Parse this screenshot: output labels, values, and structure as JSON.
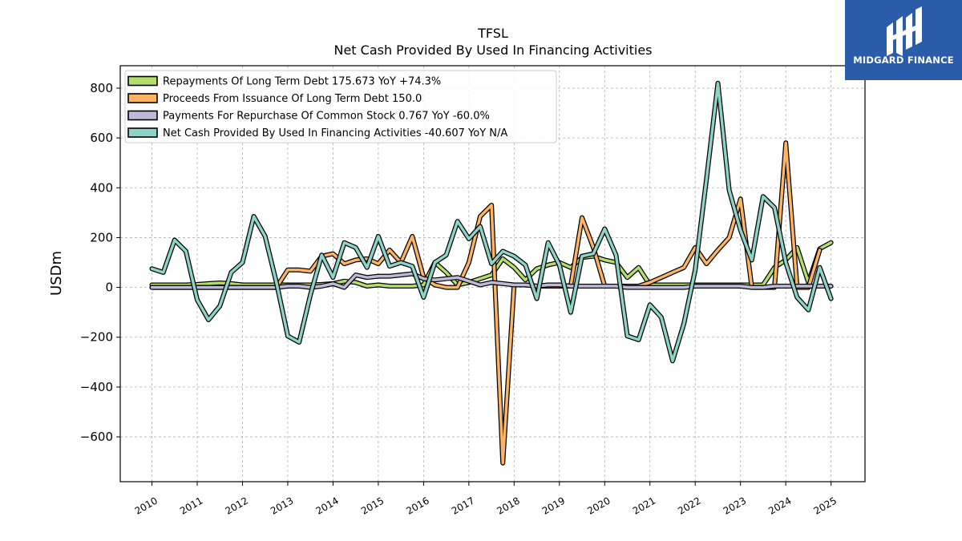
{
  "chart_data": {
    "type": "line",
    "title": "TFSL",
    "subtitle": "Net Cash Provided By Used In Financing Activities",
    "ylabel": "USDm",
    "xlabel": "",
    "ylim": [
      -780,
      890
    ],
    "xlim": [
      2009.3,
      2025.75
    ],
    "grid": true,
    "legend_position": "top-left",
    "yticks": [
      -600,
      -400,
      -200,
      0,
      200,
      400,
      600,
      800
    ],
    "ytick_labels": [
      "−600",
      "−400",
      "−200",
      "0",
      "200",
      "400",
      "600",
      "800"
    ],
    "xticks": [
      "2010",
      "2011",
      "2012",
      "2013",
      "2014",
      "2015",
      "2016",
      "2017",
      "2018",
      "2019",
      "2020",
      "2021",
      "2022",
      "2023",
      "2024",
      "2025"
    ],
    "series": [
      {
        "name": "Repayments Of Long Term Debt",
        "legend_label": "Repayments Of Long Term Debt  175.673 YoY +74.3%",
        "color": "#b3de69",
        "points": [
          [
            2010,
            10
          ],
          [
            2010.25,
            10
          ],
          [
            2010.5,
            10
          ],
          [
            2010.75,
            10
          ],
          [
            2011,
            12
          ],
          [
            2011.25,
            15
          ],
          [
            2011.5,
            18
          ],
          [
            2011.75,
            15
          ],
          [
            2012,
            10
          ],
          [
            2012.25,
            10
          ],
          [
            2012.5,
            10
          ],
          [
            2012.75,
            10
          ],
          [
            2013,
            10
          ],
          [
            2013.25,
            10
          ],
          [
            2013.5,
            10
          ],
          [
            2013.75,
            12
          ],
          [
            2014,
            15
          ],
          [
            2014.25,
            25
          ],
          [
            2014.5,
            20
          ],
          [
            2014.75,
            5
          ],
          [
            2015,
            10
          ],
          [
            2015.25,
            5
          ],
          [
            2015.5,
            5
          ],
          [
            2015.75,
            5
          ],
          [
            2016,
            10
          ],
          [
            2016.25,
            100
          ],
          [
            2016.5,
            60
          ],
          [
            2016.75,
            10
          ],
          [
            2017,
            20
          ],
          [
            2017.25,
            35
          ],
          [
            2017.5,
            50
          ],
          [
            2017.75,
            115
          ],
          [
            2018,
            80
          ],
          [
            2018.25,
            30
          ],
          [
            2018.5,
            75
          ],
          [
            2018.75,
            90
          ],
          [
            2019,
            100
          ],
          [
            2019.25,
            80
          ],
          [
            2019.5,
            120
          ],
          [
            2019.75,
            125
          ],
          [
            2020,
            110
          ],
          [
            2020.25,
            100
          ],
          [
            2020.5,
            40
          ],
          [
            2020.75,
            80
          ],
          [
            2021,
            10
          ],
          [
            2021.25,
            10
          ],
          [
            2021.5,
            10
          ],
          [
            2021.75,
            10
          ],
          [
            2022,
            10
          ],
          [
            2022.25,
            10
          ],
          [
            2022.5,
            10
          ],
          [
            2022.75,
            10
          ],
          [
            2023,
            10
          ],
          [
            2023.25,
            10
          ],
          [
            2023.5,
            10
          ],
          [
            2023.75,
            80
          ],
          [
            2024,
            110
          ],
          [
            2024.25,
            160
          ],
          [
            2024.5,
            20
          ],
          [
            2024.75,
            155
          ],
          [
            2025,
            180
          ]
        ]
      },
      {
        "name": "Proceeds From Issuance Of Long Term Debt",
        "legend_label": "Proceeds From Issuance Of Long Term Debt  150.0",
        "color": "#fdb462",
        "points": [
          [
            2010,
            0
          ],
          [
            2010.25,
            0
          ],
          [
            2010.5,
            0
          ],
          [
            2010.75,
            0
          ],
          [
            2011,
            0
          ],
          [
            2011.25,
            0
          ],
          [
            2011.5,
            0
          ],
          [
            2011.75,
            0
          ],
          [
            2012,
            0
          ],
          [
            2012.25,
            0
          ],
          [
            2012.5,
            0
          ],
          [
            2012.75,
            0
          ],
          [
            2013,
            70
          ],
          [
            2013.25,
            70
          ],
          [
            2013.5,
            65
          ],
          [
            2013.75,
            125
          ],
          [
            2014,
            135
          ],
          [
            2014.25,
            95
          ],
          [
            2014.5,
            110
          ],
          [
            2014.75,
            115
          ],
          [
            2015,
            95
          ],
          [
            2015.25,
            150
          ],
          [
            2015.5,
            100
          ],
          [
            2015.75,
            205
          ],
          [
            2016,
            40
          ],
          [
            2016.25,
            10
          ],
          [
            2016.5,
            0
          ],
          [
            2016.75,
            0
          ],
          [
            2017,
            100
          ],
          [
            2017.25,
            285
          ],
          [
            2017.5,
            330
          ],
          [
            2017.75,
            -705
          ],
          [
            2018,
            10
          ],
          [
            2018.25,
            10
          ],
          [
            2018.5,
            5
          ],
          [
            2018.75,
            5
          ],
          [
            2019,
            5
          ],
          [
            2019.25,
            5
          ],
          [
            2019.5,
            280
          ],
          [
            2019.75,
            160
          ],
          [
            2020,
            5
          ],
          [
            2020.25,
            5
          ],
          [
            2020.5,
            5
          ],
          [
            2020.75,
            5
          ],
          [
            2021,
            20
          ],
          [
            2021.25,
            40
          ],
          [
            2021.5,
            60
          ],
          [
            2021.75,
            80
          ],
          [
            2022,
            160
          ],
          [
            2022.25,
            95
          ],
          [
            2022.5,
            150
          ],
          [
            2022.75,
            200
          ],
          [
            2023,
            355
          ],
          [
            2023.25,
            0
          ],
          [
            2023.5,
            0
          ],
          [
            2023.75,
            0
          ],
          [
            2024,
            580
          ],
          [
            2024.25,
            0
          ],
          [
            2024.5,
            0
          ],
          [
            2024.75,
            150
          ]
        ]
      },
      {
        "name": "Payments For Repurchase Of Common Stock",
        "legend_label": "Payments For Repurchase Of Common Stock  0.767 YoY -60.0%",
        "color": "#bebada",
        "points": [
          [
            2010,
            0
          ],
          [
            2010.25,
            0
          ],
          [
            2010.5,
            0
          ],
          [
            2010.75,
            0
          ],
          [
            2011,
            0
          ],
          [
            2011.25,
            0
          ],
          [
            2011.5,
            0
          ],
          [
            2011.75,
            0
          ],
          [
            2012,
            0
          ],
          [
            2012.25,
            0
          ],
          [
            2012.5,
            0
          ],
          [
            2012.75,
            0
          ],
          [
            2013,
            5
          ],
          [
            2013.25,
            5
          ],
          [
            2013.5,
            0
          ],
          [
            2013.75,
            5
          ],
          [
            2014,
            15
          ],
          [
            2014.25,
            0
          ],
          [
            2014.5,
            50
          ],
          [
            2014.75,
            40
          ],
          [
            2015,
            45
          ],
          [
            2015.25,
            45
          ],
          [
            2015.5,
            50
          ],
          [
            2015.75,
            55
          ],
          [
            2016,
            35
          ],
          [
            2016.25,
            30
          ],
          [
            2016.5,
            35
          ],
          [
            2016.75,
            40
          ],
          [
            2017,
            25
          ],
          [
            2017.25,
            10
          ],
          [
            2017.5,
            20
          ],
          [
            2017.75,
            15
          ],
          [
            2018,
            10
          ],
          [
            2018.25,
            10
          ],
          [
            2018.5,
            5
          ],
          [
            2018.75,
            10
          ],
          [
            2019,
            10
          ],
          [
            2019.25,
            5
          ],
          [
            2019.5,
            5
          ],
          [
            2019.75,
            5
          ],
          [
            2020,
            5
          ],
          [
            2020.25,
            5
          ],
          [
            2020.5,
            0
          ],
          [
            2020.75,
            0
          ],
          [
            2021,
            0
          ],
          [
            2021.25,
            0
          ],
          [
            2021.5,
            0
          ],
          [
            2021.75,
            0
          ],
          [
            2022,
            5
          ],
          [
            2022.25,
            5
          ],
          [
            2022.5,
            5
          ],
          [
            2022.75,
            5
          ],
          [
            2023,
            5
          ],
          [
            2023.25,
            0
          ],
          [
            2023.5,
            0
          ],
          [
            2023.75,
            5
          ],
          [
            2024,
            5
          ],
          [
            2024.25,
            5
          ],
          [
            2024.5,
            5
          ],
          [
            2024.75,
            5
          ],
          [
            2025,
            5
          ]
        ]
      },
      {
        "name": "Net Cash Provided By Used In Financing Activities",
        "legend_label": "Net Cash Provided By Used In Financing Activities  -40.607 YoY N/A",
        "color": "#8dd3c7",
        "points": [
          [
            2010,
            75
          ],
          [
            2010.25,
            60
          ],
          [
            2010.5,
            190
          ],
          [
            2010.75,
            145
          ],
          [
            2011,
            -50
          ],
          [
            2011.25,
            -130
          ],
          [
            2011.5,
            -75
          ],
          [
            2011.75,
            60
          ],
          [
            2012,
            100
          ],
          [
            2012.25,
            285
          ],
          [
            2012.5,
            205
          ],
          [
            2012.75,
            20
          ],
          [
            2013,
            -195
          ],
          [
            2013.25,
            -220
          ],
          [
            2013.5,
            -30
          ],
          [
            2013.75,
            130
          ],
          [
            2014,
            40
          ],
          [
            2014.25,
            180
          ],
          [
            2014.5,
            160
          ],
          [
            2014.75,
            80
          ],
          [
            2015,
            205
          ],
          [
            2015.25,
            85
          ],
          [
            2015.5,
            100
          ],
          [
            2015.75,
            85
          ],
          [
            2016,
            -40
          ],
          [
            2016.25,
            100
          ],
          [
            2016.5,
            130
          ],
          [
            2016.75,
            265
          ],
          [
            2017,
            195
          ],
          [
            2017.25,
            245
          ],
          [
            2017.5,
            95
          ],
          [
            2017.75,
            145
          ],
          [
            2018,
            125
          ],
          [
            2018.25,
            90
          ],
          [
            2018.5,
            -45
          ],
          [
            2018.75,
            180
          ],
          [
            2019,
            90
          ],
          [
            2019.25,
            -100
          ],
          [
            2019.5,
            125
          ],
          [
            2019.75,
            135
          ],
          [
            2020,
            235
          ],
          [
            2020.25,
            130
          ],
          [
            2020.5,
            -195
          ],
          [
            2020.75,
            -210
          ],
          [
            2021,
            -70
          ],
          [
            2021.25,
            -120
          ],
          [
            2021.5,
            -295
          ],
          [
            2021.75,
            -145
          ],
          [
            2022,
            70
          ],
          [
            2022.25,
            435
          ],
          [
            2022.5,
            820
          ],
          [
            2022.75,
            390
          ],
          [
            2023,
            230
          ],
          [
            2023.25,
            110
          ],
          [
            2023.5,
            365
          ],
          [
            2023.75,
            320
          ],
          [
            2024,
            100
          ],
          [
            2024.25,
            -40
          ],
          [
            2024.5,
            -90
          ],
          [
            2024.75,
            80
          ],
          [
            2025,
            -45
          ]
        ]
      }
    ]
  },
  "logo": {
    "text": "MIDGARD FINANCE"
  }
}
